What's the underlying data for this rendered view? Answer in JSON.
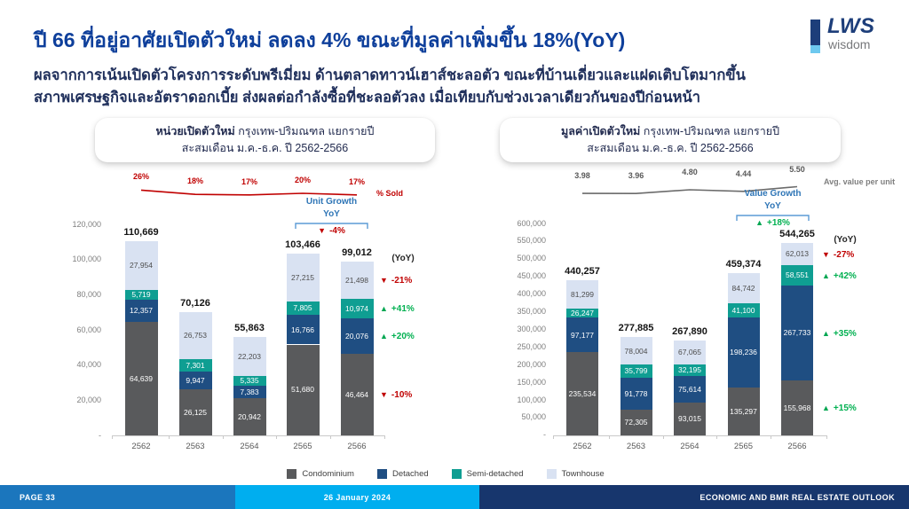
{
  "page": {
    "title": "ปี 66 ที่อยู่อาศัยเปิดตัวใหม่ ลดลง 4% ขณะที่มูลค่าเพิ่มขึ้น 18%(YoY)",
    "subtitle1": "ผลจากการเน้นเปิดตัวโครงการระดับพรีเมี่ยม ด้านตลาดทาวน์เฮาส์ชะลอตัว ขณะที่บ้านเดี่ยวและแฝดเติบโตมากขึ้น",
    "subtitle2": "สภาพเศรษฐกิจและอัตราดอกเบี้ย ส่งผลต่อกำลังซื้อที่ชะลอตัวลง เมื่อเทียบกับช่วงเวลาเดียวกันของปีก่อนหน้า"
  },
  "logo": {
    "text": "LWS",
    "sub": "wisdom"
  },
  "colors": {
    "up": "#00a651",
    "up_text": "#00b050",
    "down": "#c00000",
    "accent_blue": "#2e75b6",
    "bracket": "#5b9bd5",
    "condominium": "#595a5c",
    "detached": "#1f4e82",
    "semi_detached": "#0f9e92",
    "townhouse": "#d9e2f2"
  },
  "legend": [
    {
      "label": "Condominium",
      "color": "#595a5c"
    },
    {
      "label": "Detached",
      "color": "#1f4e82"
    },
    {
      "label": "Semi-detached",
      "color": "#0f9e92"
    },
    {
      "label": "Townhouse",
      "color": "#d9e2f2"
    }
  ],
  "footer": {
    "page": "PAGE 33",
    "date": "26 January 2024",
    "title": "ECONOMIC AND BMR REAL ESTATE OUTLOOK"
  },
  "chart_data": [
    {
      "type": "bar",
      "stacked": true,
      "panel_title_bold": "หน่วยเปิดตัวใหม่",
      "panel_title_rest": " กรุงเทพ-ปริมณฑล แยกรายปี",
      "panel_subtitle": "สะสมเดือน ม.ค.-ธ.ค. ปี 2562-2566",
      "categories": [
        "2562",
        "2563",
        "2564",
        "2565",
        "2566"
      ],
      "series": [
        {
          "name": "Condominium",
          "color": "#595a5c",
          "values": [
            64639,
            26125,
            20942,
            51680,
            46464
          ]
        },
        {
          "name": "Detached",
          "color": "#1f4e82",
          "values": [
            12357,
            9947,
            7383,
            16766,
            20076
          ]
        },
        {
          "name": "Semi-detached",
          "color": "#0f9e92",
          "values": [
            5719,
            7301,
            5335,
            7805,
            10974
          ]
        },
        {
          "name": "Townhouse",
          "color": "#d9e2f2",
          "values": [
            27954,
            26753,
            22203,
            27215,
            21498
          ]
        }
      ],
      "totals": [
        110669,
        70126,
        55863,
        103466,
        99012
      ],
      "ylim": [
        0,
        120000
      ],
      "ytick_labels": [
        "120,000",
        "100,000",
        "80,000",
        "60,000",
        "40,000",
        "20,000",
        "-"
      ],
      "line": {
        "name": "% Sold",
        "color": "#c00000",
        "values": [
          26,
          18,
          17,
          20,
          17
        ],
        "labels": [
          "26%",
          "18%",
          "17%",
          "20%",
          "17%"
        ]
      },
      "growth": {
        "line1": "Unit Growth",
        "line2": "YoY",
        "value": "-4%",
        "direction": "down"
      },
      "yoy_header": "(YoY)",
      "yoy": [
        {
          "segment": "Townhouse",
          "value": "-21%",
          "direction": "down"
        },
        {
          "segment": "Semi-detached",
          "value": "+41%",
          "direction": "up"
        },
        {
          "segment": "Detached",
          "value": "+20%",
          "direction": "up"
        },
        {
          "segment": "Condominium",
          "value": "-10%",
          "direction": "down"
        }
      ]
    },
    {
      "type": "bar",
      "stacked": true,
      "panel_title_bold": "มูลค่าเปิดตัวใหม่",
      "panel_title_rest": " กรุงเทพ-ปริมณฑล แยกรายปี",
      "panel_subtitle": "สะสมเดือน ม.ค.-ธ.ค. ปี 2562-2566",
      "categories": [
        "2562",
        "2563",
        "2564",
        "2565",
        "2566"
      ],
      "series": [
        {
          "name": "Condominium",
          "color": "#595a5c",
          "values": [
            235534,
            72305,
            93015,
            135297,
            155968
          ]
        },
        {
          "name": "Detached",
          "color": "#1f4e82",
          "values": [
            97177,
            91778,
            75614,
            198236,
            267733
          ]
        },
        {
          "name": "Semi-detached",
          "color": "#0f9e92",
          "values": [
            26247,
            35799,
            32195,
            41100,
            58551
          ]
        },
        {
          "name": "Townhouse",
          "color": "#d9e2f2",
          "values": [
            81299,
            78004,
            67065,
            84742,
            62013
          ]
        }
      ],
      "totals": [
        440257,
        277885,
        267890,
        459374,
        544265
      ],
      "ylim": [
        0,
        600000
      ],
      "ytick_labels": [
        "600,000",
        "550,000",
        "500,000",
        "450,000",
        "400,000",
        "350,000",
        "300,000",
        "250,000",
        "200,000",
        "150,000",
        "100,000",
        "50,000",
        "-"
      ],
      "line": {
        "name": "Avg. value per unit",
        "color": "#6b6b6b",
        "values": [
          3.98,
          3.96,
          4.8,
          4.44,
          5.5
        ],
        "labels": [
          "3.98",
          "3.96",
          "4.80",
          "4.44",
          "5.50"
        ]
      },
      "growth": {
        "line1": "Value Growth",
        "line2": "YoY",
        "value": "+18%",
        "direction": "up"
      },
      "yoy_header": "(YoY)",
      "yoy": [
        {
          "segment": "Townhouse",
          "value": "-27%",
          "direction": "down"
        },
        {
          "segment": "Semi-detached",
          "value": "+42%",
          "direction": "up"
        },
        {
          "segment": "Detached",
          "value": "+35%",
          "direction": "up"
        },
        {
          "segment": "Condominium",
          "value": "+15%",
          "direction": "up"
        }
      ]
    }
  ]
}
